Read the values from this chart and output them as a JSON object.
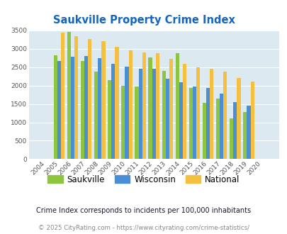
{
  "title": "Saukville Property Crime Index",
  "title_color": "#1565c0",
  "years": [
    "2004",
    "2005",
    "2006",
    "2007",
    "2008",
    "2009",
    "2010",
    "2011",
    "2012",
    "2013",
    "2014",
    "2015",
    "2016",
    "2017",
    "2018",
    "2019",
    "2020"
  ],
  "saukville": [
    0,
    2820,
    3450,
    2670,
    2370,
    2150,
    2000,
    1970,
    2760,
    2400,
    2880,
    1930,
    1540,
    1650,
    1110,
    1290,
    0
  ],
  "wisconsin": [
    0,
    2670,
    2790,
    2800,
    2740,
    2600,
    2510,
    2460,
    2460,
    2180,
    2090,
    1970,
    1940,
    1790,
    1550,
    1460,
    0
  ],
  "national": [
    0,
    3440,
    3340,
    3260,
    3210,
    3050,
    2960,
    2900,
    2880,
    2730,
    2600,
    2500,
    2460,
    2380,
    2200,
    2100,
    0
  ],
  "saukville_color": "#8dc53e",
  "wisconsin_color": "#4a8fd4",
  "national_color": "#f5c040",
  "bg_color": "#dce9f0",
  "ylim": [
    0,
    3500
  ],
  "yticks": [
    0,
    500,
    1000,
    1500,
    2000,
    2500,
    3000,
    3500
  ],
  "bar_width": 0.27,
  "footnote1": "Crime Index corresponds to incidents per 100,000 inhabitants",
  "footnote2": "© 2025 CityRating.com - https://www.cityrating.com/crime-statistics/",
  "footnote1_color": "#1a1a2e",
  "footnote2_color": "#888888",
  "legend_labels": [
    "Saukville",
    "Wisconsin",
    "National"
  ]
}
